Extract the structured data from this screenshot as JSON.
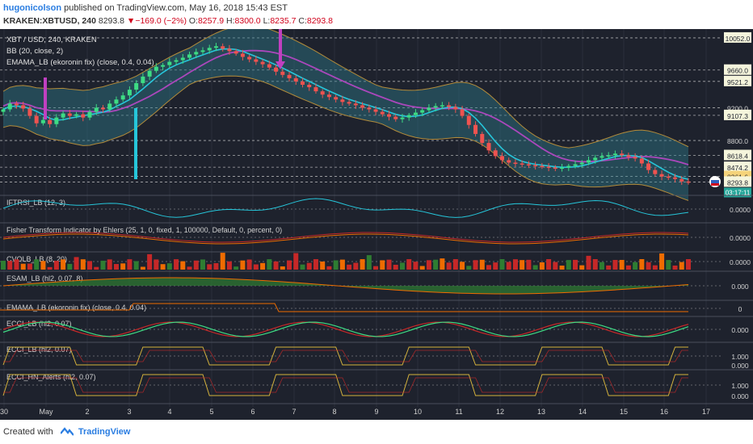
{
  "header": {
    "author": "hugonicolson",
    "published_text": "published on TradingView.com, May 16, 2018 15:43 EST",
    "symbol": "KRAKEN:XBTUSD, 240",
    "last": "8293.8",
    "change": "−169.0 (−2%)",
    "o_label": "O:",
    "o": "8257.9",
    "h_label": "H:",
    "h": "8300.0",
    "l_label": "L:",
    "l": "8235.7",
    "c_label": "C:",
    "c": "8293.8"
  },
  "footer": {
    "created_with": "Created with",
    "brand": "TradingView"
  },
  "colors": {
    "background": "#1e222d",
    "up": "#26a69a",
    "down": "#ef5350",
    "upBright": "#3ddc84",
    "bb_fill": "#2f7a8a",
    "bb_line": "#b38b3a",
    "emama": "#26c6da",
    "emama2": "#ab47bc",
    "indicator": "#26c6da",
    "green": "#2e7d32",
    "red": "#c62828",
    "orange": "#ef6c00",
    "yellow": "#d4b23c"
  },
  "icons": [
    "tradingview-logo-icon",
    "flag-icon"
  ],
  "chart_data": {
    "type": "candlestick",
    "main": {
      "labels": [
        "XBT / USD, 240, KRAKEN",
        "BB (20, close, 2)",
        "EMAMA_LB (ekoronin fix) (close, 0.4, 0.04)"
      ],
      "price_labels": [
        "10052.0",
        "9660.0",
        "9521.2",
        "9200.0",
        "9107.3",
        "8800.0",
        "8618.4",
        "8474.2",
        "8361.6",
        "8293.8"
      ],
      "price_levels": [
        10052.0,
        9660.0,
        9521.2,
        9200.0,
        9107.3,
        8800.0,
        8618.4,
        8474.2,
        8361.6,
        8293.8
      ],
      "countdown": "03:17:11",
      "ylim": [
        8180,
        10130
      ],
      "closes": [
        9180,
        9250,
        9230,
        9190,
        9100,
        9010,
        9050,
        9000,
        9080,
        9130,
        9100,
        9120,
        9080,
        9150,
        9200,
        9180,
        9250,
        9300,
        9350,
        9420,
        9500,
        9580,
        9650,
        9700,
        9720,
        9760,
        9780,
        9810,
        9850,
        9880,
        9900,
        9930,
        9950,
        9920,
        9890,
        9860,
        9820,
        9790,
        9760,
        9730,
        9690,
        9640,
        9600,
        9560,
        9520,
        9480,
        9450,
        9400,
        9360,
        9330,
        9300,
        9270,
        9250,
        9230,
        9200,
        9180,
        9150,
        9120,
        9090,
        9060,
        9080,
        9110,
        9140,
        9170,
        9200,
        9220,
        9230,
        9210,
        9180,
        9100,
        8990,
        8880,
        8770,
        8680,
        8610,
        8560,
        8530,
        8520,
        8510,
        8500,
        8490,
        8480,
        8470,
        8460,
        8470,
        8490,
        8510,
        8530,
        8560,
        8590,
        8610,
        8620,
        8640,
        8620,
        8600,
        8580,
        8520,
        8440,
        8390,
        8360,
        8350,
        8330,
        8300,
        8293.8
      ]
    },
    "panes": [
      {
        "label": "IFTRSI_LB (12, 3)",
        "axis": "0.0000"
      },
      {
        "label": "Fisher Transform Indicator by Ehlers (25, 1, 0, fixed, 1, 100000, Default, 0, percent, 0)",
        "axis": "0.0000"
      },
      {
        "label": "CVOLB_LB (8, 20)",
        "axis": "0.0000"
      },
      {
        "label": "ESAM_LB (hl2, 0.07, 8)",
        "axis": "0.000"
      },
      {
        "label": "EMAMA_LB (ekoronin fix) (close, 0.4, 0.04)",
        "axis": "0"
      },
      {
        "label": "ECCI_LB (hl2, 0.07)",
        "axis": "0.000"
      },
      {
        "label": "ECCI_LB (hl2, 0.07)",
        "axis": "1.000",
        "axis_low": "0.000"
      },
      {
        "label": "ECCI_HN_Alerts (hl2, 0.07)",
        "axis": "1.000",
        "axis_low": "0.000"
      }
    ],
    "x_tick_labels": [
      "30",
      "May",
      "2",
      "3",
      "4",
      "5",
      "6",
      "7",
      "8",
      "9",
      "10",
      "11",
      "12",
      "13",
      "14",
      "15",
      "16",
      "17"
    ]
  }
}
